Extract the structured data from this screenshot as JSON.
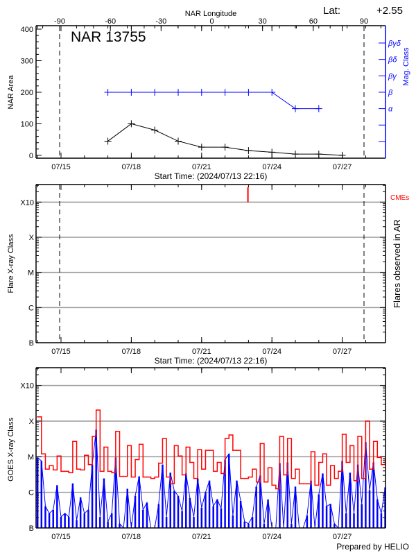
{
  "header": {
    "title": "NAR 13755",
    "lat_label": "Lat:",
    "lat_value": "+2.55",
    "longitude_axis_label": "NAR Longitude",
    "footer": "Prepared by HELIO"
  },
  "colors": {
    "area": "#000000",
    "mag_class": "#0000ff",
    "cme": "#ff0000",
    "goes_long": "#ff0000",
    "goes_short": "#0000ff",
    "grid": "#999999"
  },
  "chart_data": [
    {
      "type": "line",
      "panel": "nar",
      "title": "NAR 13755",
      "xlabel": "Start Time: (2024/07/13 22:16)",
      "ylabel": "NAR Area",
      "y2label": "Mag. Class",
      "x_ticks": [
        "07/15",
        "07/18",
        "07/21",
        "07/24",
        "07/27"
      ],
      "y_ticks": [
        0,
        100,
        200,
        300,
        400
      ],
      "ylim": [
        -9,
        411
      ],
      "longitude_ticks": [
        -90,
        -60,
        -30,
        0,
        30,
        60,
        90
      ],
      "longitude_range": [
        -104,
        103
      ],
      "limb_longitudes": [
        -90,
        90
      ],
      "mag_class_ticks": [
        "",
        "",
        "α",
        "β",
        "βγ",
        "βδ",
        "βγδ"
      ],
      "mag_class_area_equivalent": [
        44,
        96,
        148,
        200,
        252,
        304,
        356
      ],
      "area_series": {
        "x": [
          "07/17",
          "07/18",
          "07/19",
          "07/20",
          "07/21",
          "07/22",
          "07/23",
          "07/24",
          "07/25",
          "07/26",
          "07/27"
        ],
        "values": [
          45,
          100,
          80,
          45,
          26,
          26,
          15,
          10,
          4,
          4,
          0
        ]
      },
      "mag_class_series": {
        "x": [
          "07/17",
          "07/18",
          "07/19",
          "07/20",
          "07/21",
          "07/22",
          "07/23",
          "07/24",
          "07/25",
          "07/26"
        ],
        "values": [
          "β",
          "β",
          "β",
          "β",
          "β",
          "β",
          "β",
          "β",
          "α",
          "α"
        ]
      }
    },
    {
      "type": "scatter",
      "panel": "flares",
      "xlabel": "Start Time: (2024/07/13 22:16)",
      "ylabel": "Flare X-ray Class",
      "y2label": "Flares observed in AR",
      "cme_label": "CMEs",
      "x_ticks": [
        "07/15",
        "07/18",
        "07/21",
        "07/24",
        "07/27"
      ],
      "y_ticks": [
        {
          "label": "B",
          "log_flux": -7
        },
        {
          "label": "C",
          "log_flux": -6
        },
        {
          "label": "M",
          "log_flux": -5
        },
        {
          "label": "X",
          "log_flux": -4
        },
        {
          "label": "X10",
          "log_flux": -3
        }
      ],
      "ylim": [
        -7,
        -2.5
      ],
      "grid": true,
      "limb_longitudes": [
        -90,
        90
      ],
      "cmes": [
        "07/22 22:40",
        "07/22 23:50"
      ],
      "flares": []
    },
    {
      "type": "line",
      "panel": "goes",
      "ylabel": "GOES X-ray Class",
      "x_ticks": [
        "07/15",
        "07/18",
        "07/21",
        "07/24",
        "07/27"
      ],
      "y_ticks": [
        {
          "label": "B",
          "log_flux": -7
        },
        {
          "label": "C",
          "log_flux": -6
        },
        {
          "label": "M",
          "log_flux": -5
        },
        {
          "label": "X",
          "log_flux": -4
        },
        {
          "label": "X10",
          "log_flux": -3
        }
      ],
      "ylim": [
        -7,
        -2.5
      ],
      "grid": true,
      "times": [
        "07/14 00:00",
        "07/14 04:00",
        "07/14 08:00",
        "07/14 12:00",
        "07/14 16:00",
        "07/14 20:00",
        "07/15 00:00",
        "07/15 04:00",
        "07/15 08:00",
        "07/15 12:00",
        "07/15 16:00",
        "07/15 20:00",
        "07/16 00:00",
        "07/16 04:00",
        "07/16 08:00",
        "07/16 12:00",
        "07/16 16:00",
        "07/16 20:00",
        "07/17 00:00",
        "07/17 04:00",
        "07/17 08:00",
        "07/17 12:00",
        "07/17 16:00",
        "07/17 20:00",
        "07/18 00:00",
        "07/18 04:00",
        "07/18 08:00",
        "07/18 12:00",
        "07/18 16:00",
        "07/18 20:00",
        "07/19 00:00",
        "07/19 04:00",
        "07/19 08:00",
        "07/19 12:00",
        "07/19 16:00",
        "07/19 20:00",
        "07/20 00:00",
        "07/20 04:00",
        "07/20 08:00",
        "07/20 12:00",
        "07/20 16:00",
        "07/20 20:00",
        "07/21 00:00",
        "07/21 04:00",
        "07/21 08:00",
        "07/21 12:00",
        "07/21 16:00",
        "07/21 20:00",
        "07/22 00:00",
        "07/22 04:00",
        "07/22 08:00",
        "07/22 12:00",
        "07/22 16:00",
        "07/22 20:00",
        "07/23 00:00",
        "07/23 04:00",
        "07/23 08:00",
        "07/23 12:00",
        "07/23 16:00",
        "07/23 20:00",
        "07/24 00:00",
        "07/24 04:00",
        "07/24 08:00",
        "07/24 12:00",
        "07/24 16:00",
        "07/24 20:00",
        "07/25 00:00",
        "07/25 04:00",
        "07/25 08:00",
        "07/25 12:00",
        "07/25 16:00",
        "07/25 20:00",
        "07/26 00:00",
        "07/26 04:00",
        "07/26 08:00",
        "07/26 12:00",
        "07/26 16:00",
        "07/26 20:00",
        "07/27 00:00",
        "07/27 04:00",
        "07/27 08:00",
        "07/27 12:00",
        "07/27 16:00",
        "07/27 20:00",
        "07/28 00:00",
        "07/28 04:00",
        "07/28 08:00",
        "07/28 12:00",
        "07/28 16:00",
        "07/28 20:00"
      ],
      "series": [
        {
          "color": "#ff0000",
          "values": [
            -3.88,
            -4.92,
            -5.35,
            -5.25,
            -5.37,
            -4.98,
            -5.41,
            -5.41,
            -5.45,
            -4.57,
            -5.35,
            -5.37,
            -4.96,
            -5.22,
            -4.43,
            -3.69,
            -5.41,
            -4.73,
            -5.41,
            -5.45,
            -4.29,
            -5.55,
            -5.55,
            -4.69,
            -5.57,
            -5.08,
            -4.65,
            -5.57,
            -5.57,
            -5.61,
            -5.57,
            -5.18,
            -4.49,
            -5.57,
            -5.76,
            -4.69,
            -4.98,
            -5.51,
            -4.73,
            -5.16,
            -5.61,
            -4.8,
            -5.35,
            -4.82,
            -4.82,
            -5.41,
            -5.16,
            -5.47,
            -4.49,
            -4.39,
            -4.82,
            -4.82,
            -5.61,
            -5.61,
            -5.57,
            -5.35,
            -5.71,
            -4.63,
            -5.71,
            -5.31,
            -5.8,
            -5.9,
            -4.43,
            -5.51,
            -4.49,
            -5.61,
            -5.35,
            -5.76,
            -5.76,
            -5.76,
            -4.86,
            -5.8,
            -5.16,
            -4.92,
            -5.8,
            -5.25,
            -5.61,
            -5.41,
            -4.37,
            -5.16,
            -4.69,
            -5.67,
            -4.43,
            -5.61,
            -4.0,
            -5.35,
            -4.57,
            -5.02,
            -5.22,
            -5.06
          ]
        },
        {
          "color": "#0000ff",
          "values": [
            -5.02,
            -5.12,
            -6.39,
            -6.59,
            -6.49,
            -5.8,
            -6.69,
            -6.59,
            -6.69,
            -5.75,
            -6.78,
            -6.14,
            -6.59,
            -6.49,
            -5.22,
            -4.24,
            -6.69,
            -5.61,
            -6.82,
            -6.59,
            -5.02,
            -6.88,
            -7.0,
            -5.9,
            -7.0,
            -6.1,
            -5.55,
            -6.49,
            -6.29,
            -7.0,
            -7.0,
            -6.33,
            -5.22,
            -6.69,
            -5.45,
            -5.96,
            -6.1,
            -6.53,
            -5.47,
            -6.16,
            -6.69,
            -5.61,
            -6.43,
            -6.0,
            -5.67,
            -6.39,
            -6.2,
            -6.45,
            -5.08,
            -4.92,
            -6.65,
            -5.67,
            -6.24,
            -6.82,
            -6.88,
            -6.69,
            -5.84,
            -5.53,
            -6.88,
            -6.2,
            -7.0,
            -7.0,
            -5.18,
            -7.0,
            -5.16,
            -6.88,
            -5.84,
            -7.0,
            -7.0,
            -6.65,
            -5.67,
            -7.0,
            -6.06,
            -5.47,
            -6.39,
            -6.33,
            -6.88,
            -7.0,
            -5.12,
            -6.59,
            -5.45,
            -6.59,
            -5.22,
            -6.33,
            -4.59,
            -5.94,
            -5.16,
            -6.2,
            -6.59,
            -5.86
          ]
        }
      ]
    }
  ]
}
